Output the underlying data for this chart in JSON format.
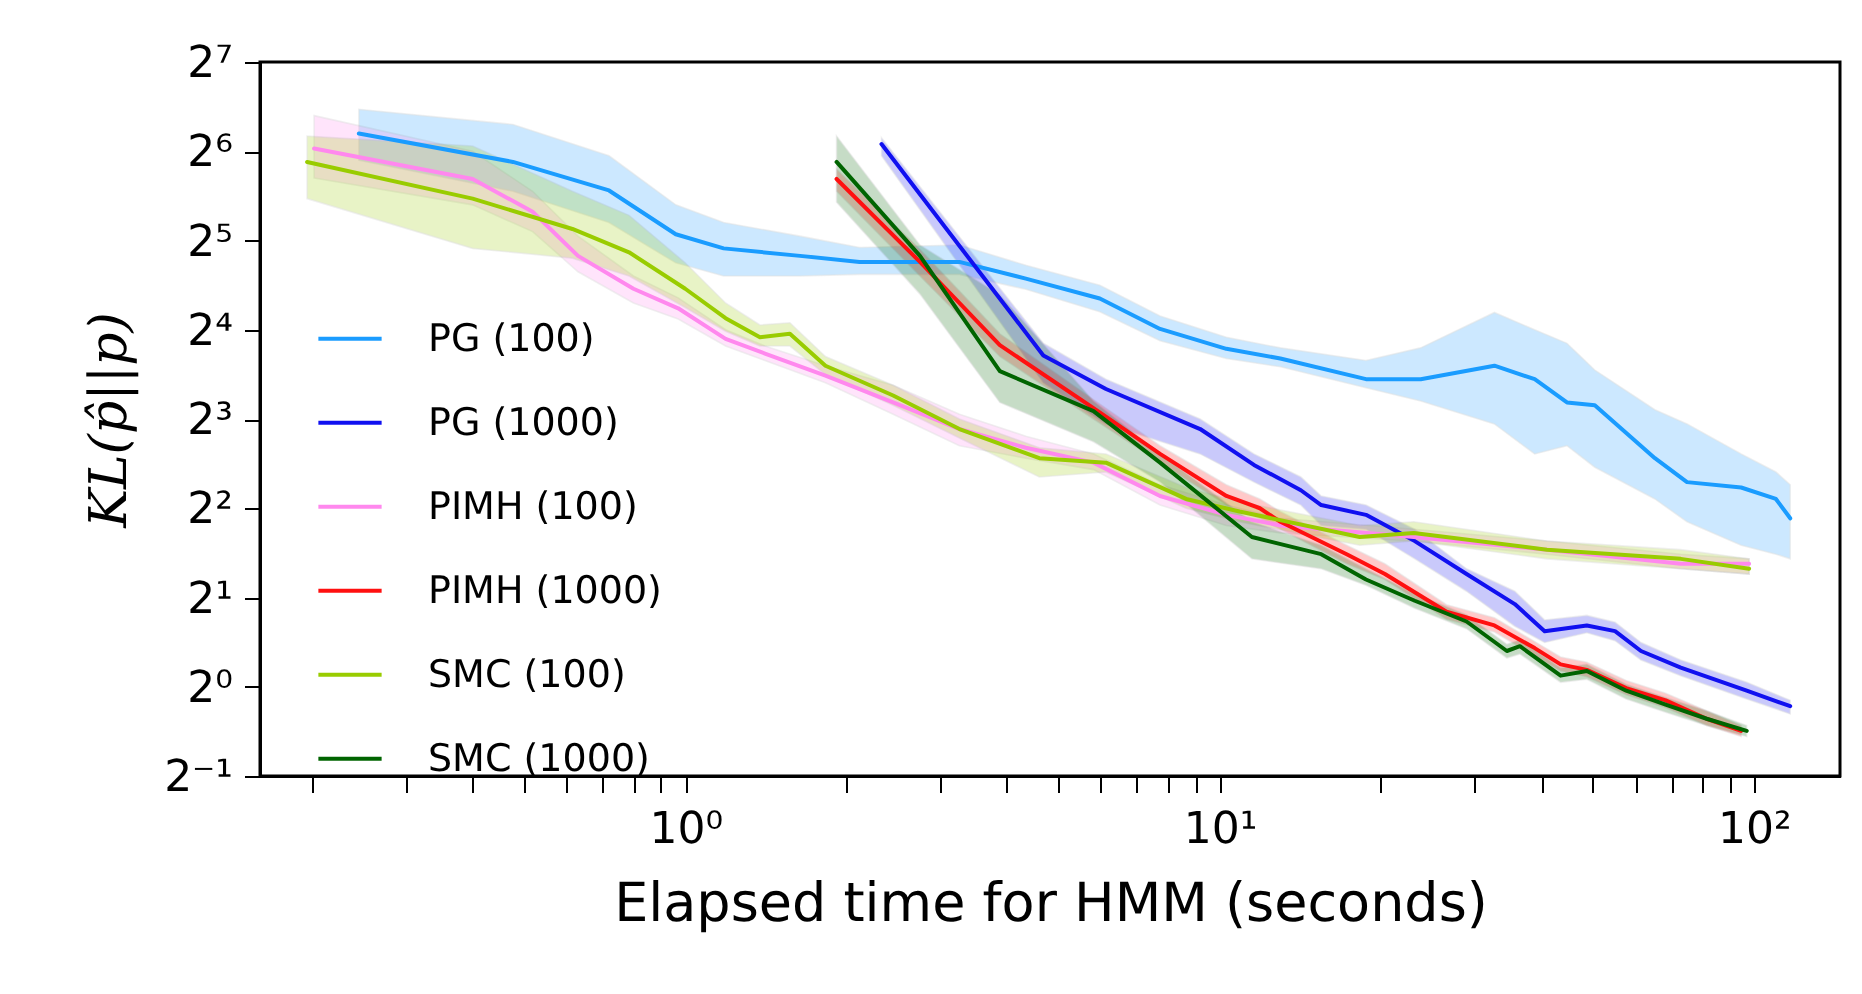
{
  "chart_data": {
    "type": "line",
    "xlabel": "Elapsed time for HMM (seconds)",
    "ylabel": "KL(p̂||p)",
    "log": "xy",
    "grid": false,
    "legend": "left",
    "line_style": "solid",
    "xlim": [
      0.16,
      145
    ],
    "ylim": [
      0.5,
      128
    ],
    "xticks": [
      {
        "value": 0.2,
        "label": null
      },
      {
        "value": 0.3,
        "label": null
      },
      {
        "value": 0.4,
        "label": null
      },
      {
        "value": 0.5,
        "label": null
      },
      {
        "value": 0.6,
        "label": null
      },
      {
        "value": 0.7,
        "label": null
      },
      {
        "value": 0.8,
        "label": null
      },
      {
        "value": 0.9,
        "label": null
      },
      {
        "value": 1,
        "label": "10⁰"
      },
      {
        "value": 2,
        "label": null
      },
      {
        "value": 3,
        "label": null
      },
      {
        "value": 4,
        "label": null
      },
      {
        "value": 5,
        "label": null
      },
      {
        "value": 6,
        "label": null
      },
      {
        "value": 7,
        "label": null
      },
      {
        "value": 8,
        "label": null
      },
      {
        "value": 9,
        "label": null
      },
      {
        "value": 10,
        "label": "10¹"
      },
      {
        "value": 20,
        "label": null
      },
      {
        "value": 30,
        "label": null
      },
      {
        "value": 40,
        "label": null
      },
      {
        "value": 50,
        "label": null
      },
      {
        "value": 60,
        "label": null
      },
      {
        "value": 70,
        "label": null
      },
      {
        "value": 80,
        "label": null
      },
      {
        "value": 90,
        "label": null
      },
      {
        "value": 100,
        "label": "10²"
      }
    ],
    "yticks": [
      {
        "value": 0.5,
        "label": "2⁻¹"
      },
      {
        "value": 1,
        "label": "2⁰"
      },
      {
        "value": 2,
        "label": "2¹"
      },
      {
        "value": 4,
        "label": "2²"
      },
      {
        "value": 8,
        "label": "2³"
      },
      {
        "value": 16,
        "label": "2⁴"
      },
      {
        "value": 32,
        "label": "2⁵"
      },
      {
        "value": 64,
        "label": "2⁶"
      },
      {
        "value": 128,
        "label": "2⁷"
      }
    ],
    "series": [
      {
        "name": "PG (100)",
        "color": "#1a9cff",
        "x": [
          0.245,
          0.476,
          0.72,
          0.96,
          1.18,
          1.64,
          2.12,
          3.26,
          4.34,
          5.97,
          7.74,
          10.3,
          13.0,
          18.8,
          23.8,
          32.7,
          38.9,
          44.7,
          50.4,
          65.3,
          75,
          94.7,
          110,
          117
        ],
        "values": [
          73.5,
          58.9,
          47.2,
          33.6,
          30.1,
          28.4,
          27.1,
          27.1,
          23.8,
          20.4,
          16.1,
          13.8,
          12.8,
          10.9,
          10.9,
          12.1,
          10.9,
          9.1,
          8.9,
          5.9,
          4.9,
          4.7,
          4.3,
          3.7
        ],
        "lower": [
          59.7,
          46.9,
          36.8,
          26.9,
          24.3,
          24.3,
          24.6,
          24.6,
          21.9,
          18.4,
          14.7,
          12.8,
          12.0,
          10.2,
          9.2,
          7.7,
          6.1,
          6.5,
          5.5,
          4.3,
          3.6,
          3.0,
          2.8,
          2.7
        ],
        "upper": [
          88.6,
          78.8,
          61.8,
          42.2,
          36.8,
          33.1,
          30.3,
          30.9,
          26.4,
          22.6,
          17.8,
          15.1,
          13.9,
          12.6,
          13.9,
          18.3,
          16,
          14.4,
          11.7,
          8.6,
          7.7,
          6.1,
          5.3,
          4.8
        ]
      },
      {
        "name": "PG (1000)",
        "color": "#1010f0",
        "x": [
          2.33,
          4.68,
          6.13,
          9.2,
          11.6,
          14.2,
          15.5,
          18.8,
          23.2,
          29,
          35.7,
          40.6,
          48.7,
          55,
          61.5,
          73,
          97,
          117
        ],
        "values": [
          67.7,
          13.1,
          10.1,
          7.4,
          5.6,
          4.6,
          4.1,
          3.8,
          3.1,
          2.4,
          1.9,
          1.54,
          1.61,
          1.54,
          1.32,
          1.16,
          0.97,
          0.86
        ],
        "lower": [
          61.8,
          10.6,
          7.7,
          6.1,
          4.9,
          4.1,
          3.5,
          3.4,
          2.7,
          2.1,
          1.6,
          1.41,
          1.52,
          1.43,
          1.23,
          1.09,
          0.91,
          0.81
        ],
        "upper": [
          71,
          14.4,
          10.9,
          8,
          6.1,
          5.1,
          4.4,
          4.1,
          3.4,
          2.5,
          2.1,
          1.68,
          1.74,
          1.65,
          1.41,
          1.23,
          1.035,
          0.9
        ]
      },
      {
        "name": "PIMH (100)",
        "color": "#ff88ee",
        "x": [
          0.202,
          0.4,
          0.518,
          0.63,
          0.8,
          0.97,
          1.19,
          1.41,
          1.83,
          2.45,
          3.26,
          4.34,
          5.81,
          7.74,
          10.3,
          13,
          23.1,
          41,
          73,
          98
        ],
        "values": [
          65.4,
          51.6,
          40,
          28.4,
          22,
          18.9,
          14.9,
          13.3,
          11.2,
          9.1,
          7.4,
          6.4,
          5.7,
          4.4,
          3.8,
          3.5,
          3.2,
          2.9,
          2.6,
          2.6
        ],
        "lower": [
          52,
          42.2,
          34.3,
          25.1,
          19.7,
          17.4,
          14.1,
          12.6,
          10.6,
          8.3,
          6.5,
          5.9,
          5.4,
          4.1,
          3.5,
          3.3,
          3.1,
          2.8,
          2.5,
          2.4
        ],
        "upper": [
          84.4,
          64,
          46.9,
          33.1,
          24.3,
          20.5,
          16,
          14.1,
          12.1,
          10.4,
          8.3,
          7,
          6.1,
          4.8,
          4.1,
          3.7,
          3.4,
          3.1,
          2.8,
          2.7
        ]
      },
      {
        "name": "PIMH (1000)",
        "color": "#ff1010",
        "x": [
          1.92,
          2.75,
          3.88,
          5.81,
          7.74,
          10.3,
          11.9,
          13,
          17.3,
          20.4,
          26.6,
          32.7,
          38.9,
          43.5,
          48.7,
          57.7,
          68.4,
          81.6,
          94.7
        ],
        "values": [
          51.6,
          27.1,
          14.2,
          8.7,
          6.1,
          4.4,
          4,
          3.6,
          2.8,
          2.4,
          1.79,
          1.61,
          1.35,
          1.19,
          1.14,
          0.99,
          0.9,
          0.78,
          0.71
        ],
        "lower": [
          46.9,
          24.3,
          13,
          8,
          5.7,
          4.1,
          3.7,
          3.4,
          2.6,
          2.3,
          1.69,
          1.53,
          1.27,
          1.13,
          1.08,
          0.94,
          0.85,
          0.74,
          0.68
        ],
        "upper": [
          55.7,
          29.9,
          15.5,
          9.3,
          6.5,
          4.8,
          4.3,
          3.9,
          3.0,
          2.6,
          1.89,
          1.71,
          1.42,
          1.26,
          1.21,
          1.05,
          0.95,
          0.83,
          0.74
        ]
      },
      {
        "name": "SMC (100)",
        "color": "#99cc00",
        "x": [
          0.196,
          0.4,
          0.615,
          0.785,
          1.0,
          1.19,
          1.38,
          1.57,
          1.83,
          2.45,
          3.26,
          4.6,
          6.13,
          8.66,
          10.9,
          18.3,
          23.1,
          41,
          73,
          98
        ],
        "values": [
          58.9,
          44.3,
          35,
          29.2,
          22,
          17.5,
          15.1,
          15.5,
          12.1,
          9.6,
          7.4,
          5.9,
          5.7,
          4.3,
          3.9,
          3.2,
          3.3,
          2.9,
          2.7,
          2.5
        ],
        "lower": [
          44.3,
          30.1,
          27.9,
          24.3,
          19,
          15.8,
          14.1,
          14.1,
          11.3,
          8.9,
          6.9,
          5.1,
          5.3,
          4,
          3.6,
          3.0,
          3.1,
          2.7,
          2.5,
          2.4
        ],
        "upper": [
          72,
          66.7,
          46.9,
          38.9,
          26.9,
          19.7,
          16.6,
          16.9,
          13,
          10.4,
          8,
          6.4,
          6.1,
          4.7,
          4.2,
          3.5,
          3.6,
          3.1,
          2.9,
          2.7
        ]
      },
      {
        "name": "SMC (1000)",
        "color": "#006400",
        "x": [
          1.92,
          2.75,
          3.88,
          5.81,
          7.74,
          11.5,
          15.5,
          18.8,
          23.2,
          29,
          34.5,
          36.5,
          43.5,
          48.7,
          57.7,
          68.4,
          81.6,
          97
        ],
        "values": [
          58.9,
          28.4,
          11.6,
          8.5,
          5.7,
          3.2,
          2.8,
          2.3,
          1.95,
          1.66,
          1.32,
          1.37,
          1.09,
          1.13,
          0.97,
          0.87,
          0.78,
          0.71
        ],
        "lower": [
          43.1,
          21.1,
          9.1,
          6.7,
          4.9,
          2.7,
          2.5,
          2.2,
          1.84,
          1.57,
          1.25,
          1.29,
          1.035,
          1.06,
          0.91,
          0.82,
          0.74,
          0.68
        ],
        "upper": [
          72,
          30.9,
          21,
          9.2,
          6.1,
          3.6,
          3.0,
          2.5,
          2.06,
          1.75,
          1.39,
          1.44,
          1.16,
          1.19,
          1.02,
          0.92,
          0.83,
          0.74
        ]
      }
    ]
  }
}
